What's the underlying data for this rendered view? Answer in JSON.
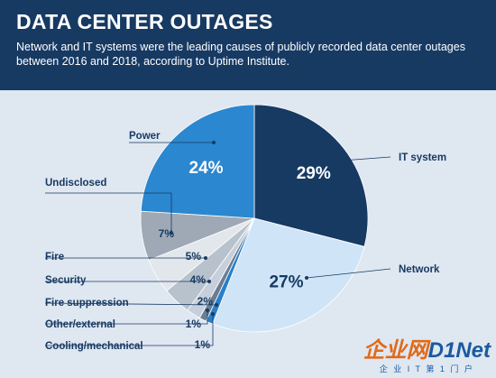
{
  "header": {
    "title": "DATA CENTER OUTAGES",
    "subtitle": "Network and IT systems were the leading causes of publicly recorded data center outages between 2016 and 2018, according to Uptime Institute."
  },
  "chart_data": {
    "type": "pie",
    "title": "DATA CENTER OUTAGES",
    "slices": [
      {
        "label": "IT system",
        "value": 29,
        "value_label": "29%",
        "color": "#173a63"
      },
      {
        "label": "Network",
        "value": 27,
        "value_label": "27%",
        "color": "#cfe5f7"
      },
      {
        "label": "Cooling/mechanical",
        "value": 1,
        "value_label": "1%",
        "color": "#2a7fc9"
      },
      {
        "label": "Other/external",
        "value": 1,
        "value_label": "1%",
        "color": "#6a7d93"
      },
      {
        "label": "Fire suppression",
        "value": 2,
        "value_label": "2%",
        "color": "#c7d0da"
      },
      {
        "label": "Security",
        "value": 4,
        "value_label": "4%",
        "color": "#b8c2cd"
      },
      {
        "label": "Fire",
        "value": 5,
        "value_label": "5%",
        "color": "#e2e7ec"
      },
      {
        "label": "Undisclosed",
        "value": 7,
        "value_label": "7%",
        "color": "#9fa9b5"
      },
      {
        "label": "Power",
        "value": 24,
        "value_label": "24%",
        "color": "#2b87cf"
      }
    ]
  },
  "watermark": {
    "main_orange": "企业网",
    "main_blue": "D1Net",
    "sub": "企 业 I T 第 1 门 户"
  }
}
